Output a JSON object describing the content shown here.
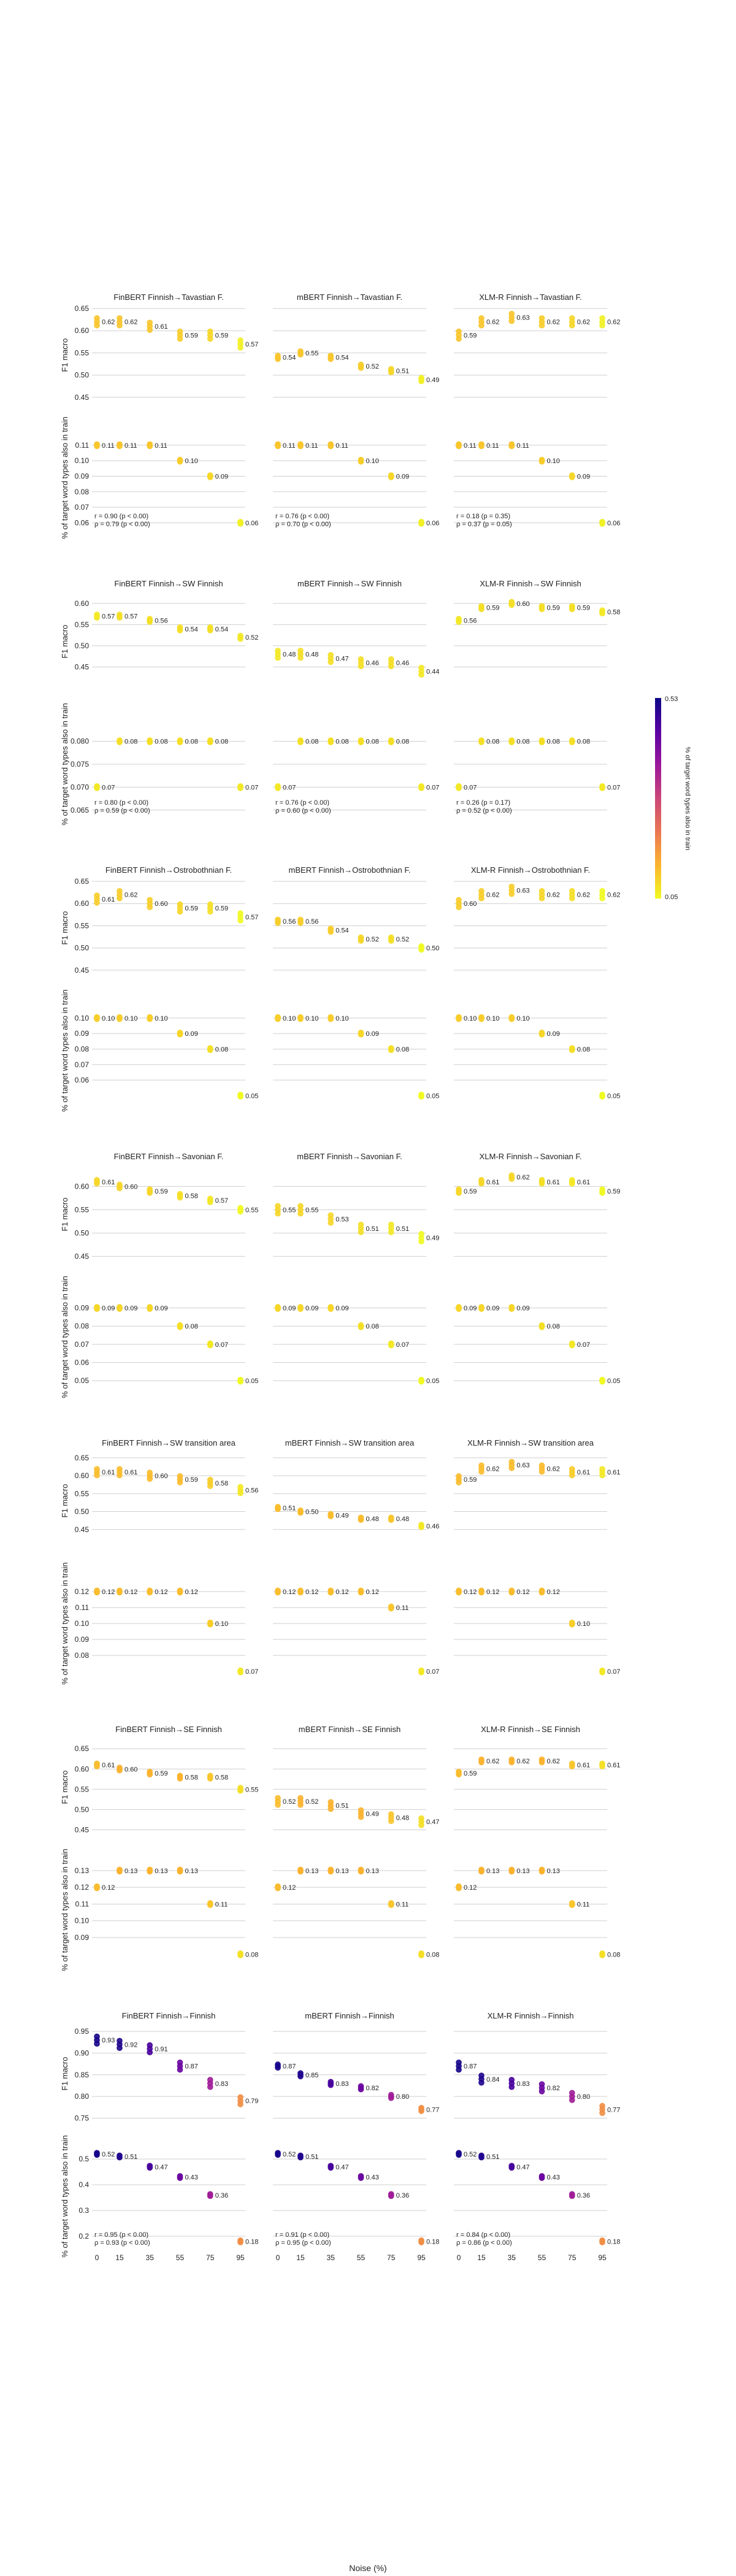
{
  "figure": {
    "xlabel": "Noise (%)",
    "ylabel_f1": "F1 macro",
    "ylabel_overlap": "% of target word types also in train",
    "colorbar": {
      "label": "% of target word types also in train",
      "min_label": "0.05",
      "max_label": "0.53"
    },
    "x_ticks": [
      0,
      15,
      35,
      55,
      75,
      95
    ],
    "colormap": [
      "#0d0887",
      "#5b02a3",
      "#9a179b",
      "#cb4678",
      "#eb7852",
      "#fbb32f",
      "#f0f921"
    ]
  },
  "chart_data": [
    {
      "type": "scatter",
      "title": "FinBERT Finnish→Tavastian F.",
      "x": [
        0,
        15,
        35,
        55,
        75,
        95
      ],
      "f1": [
        0.62,
        0.62,
        0.61,
        0.59,
        0.59,
        0.57
      ],
      "overlap": [
        0.11,
        0.11,
        0.11,
        0.1,
        0.09,
        0.06
      ],
      "stats": [
        "r = 0.90 (p < 0.00)",
        "ρ = 0.79 (p < 0.00)"
      ],
      "ylim_f1": [
        0.44,
        0.65
      ],
      "yticks_f1": [
        0.45,
        0.5,
        0.55,
        0.6,
        0.65
      ],
      "ylim_ov": [
        0.055,
        0.123
      ],
      "yticks_ov": [
        0.06,
        0.07,
        0.08,
        0.09,
        0.1,
        0.11
      ]
    },
    {
      "type": "scatter",
      "title": "mBERT Finnish→Tavastian F.",
      "x": [
        0,
        15,
        35,
        55,
        75,
        95
      ],
      "f1": [
        0.54,
        0.55,
        0.54,
        0.52,
        0.51,
        0.49
      ],
      "overlap": [
        0.11,
        0.11,
        0.11,
        0.1,
        0.09,
        0.06
      ],
      "stats": [
        "r = 0.76 (p < 0.00)",
        "ρ = 0.70 (p < 0.00)"
      ],
      "ylim_f1": [
        0.44,
        0.65
      ],
      "yticks_f1": [
        0.45,
        0.5,
        0.55,
        0.6,
        0.65
      ],
      "ylim_ov": [
        0.055,
        0.123
      ],
      "yticks_ov": [
        0.06,
        0.07,
        0.08,
        0.09,
        0.1,
        0.11
      ]
    },
    {
      "type": "scatter",
      "title": "XLM-R Finnish→Tavastian F.",
      "x": [
        0,
        15,
        35,
        55,
        75,
        95
      ],
      "f1": [
        0.59,
        0.62,
        0.63,
        0.62,
        0.62,
        0.62
      ],
      "overlap": [
        0.11,
        0.11,
        0.11,
        0.1,
        0.09,
        0.06
      ],
      "stats": [
        "r = 0.18 (p = 0.35)",
        "ρ = 0.37 (p = 0.05)"
      ],
      "ylim_f1": [
        0.44,
        0.65
      ],
      "yticks_f1": [
        0.45,
        0.5,
        0.55,
        0.6,
        0.65
      ],
      "ylim_ov": [
        0.055,
        0.123
      ],
      "yticks_ov": [
        0.06,
        0.07,
        0.08,
        0.09,
        0.1,
        0.11
      ]
    },
    {
      "type": "scatter",
      "title": "FinBERT Finnish→SW Finnish",
      "x": [
        0,
        15,
        35,
        55,
        75,
        95
      ],
      "f1": [
        0.57,
        0.57,
        0.56,
        0.54,
        0.54,
        0.52
      ],
      "overlap": [
        0.07,
        0.08,
        0.08,
        0.08,
        0.08,
        0.07
      ],
      "stats": [
        "r = 0.80 (p < 0.00)",
        "ρ = 0.59 (p < 0.00)"
      ],
      "ylim_f1": [
        0.4,
        0.62
      ],
      "yticks_f1": [
        0.45,
        0.5,
        0.55,
        0.6
      ],
      "ylim_ov": [
        0.0635,
        0.0865
      ],
      "yticks_ov": [
        0.065,
        0.07,
        0.075,
        0.08
      ]
    },
    {
      "type": "scatter",
      "title": "mBERT Finnish→SW Finnish",
      "x": [
        0,
        15,
        35,
        55,
        75,
        95
      ],
      "f1": [
        0.48,
        0.48,
        0.47,
        0.46,
        0.46,
        0.44
      ],
      "overlap": [
        0.07,
        0.08,
        0.08,
        0.08,
        0.08,
        0.07
      ],
      "stats": [
        "r = 0.76 (p < 0.00)",
        "ρ = 0.60 (p < 0.00)"
      ],
      "ylim_f1": [
        0.4,
        0.62
      ],
      "yticks_f1": [
        0.45,
        0.5,
        0.55,
        0.6
      ],
      "ylim_ov": [
        0.0635,
        0.0865
      ],
      "yticks_ov": [
        0.065,
        0.07,
        0.075,
        0.08
      ]
    },
    {
      "type": "scatter",
      "title": "XLM-R Finnish→SW Finnish",
      "x": [
        0,
        15,
        35,
        55,
        75,
        95
      ],
      "f1": [
        0.56,
        0.59,
        0.6,
        0.59,
        0.59,
        0.58
      ],
      "overlap": [
        0.07,
        0.08,
        0.08,
        0.08,
        0.08,
        0.07
      ],
      "stats": [
        "r = 0.26 (p = 0.17)",
        "ρ = 0.52 (p < 0.00)"
      ],
      "ylim_f1": [
        0.4,
        0.62
      ],
      "yticks_f1": [
        0.45,
        0.5,
        0.55,
        0.6
      ],
      "ylim_ov": [
        0.0635,
        0.0865
      ],
      "yticks_ov": [
        0.065,
        0.07,
        0.075,
        0.08
      ]
    },
    {
      "type": "scatter",
      "title": "FinBERT Finnish→Ostrobothnian F.",
      "x": [
        0,
        15,
        35,
        55,
        75,
        95
      ],
      "f1": [
        0.61,
        0.62,
        0.6,
        0.59,
        0.59,
        0.57
      ],
      "overlap": [
        0.1,
        0.1,
        0.1,
        0.09,
        0.08,
        0.05
      ],
      "stats": [],
      "ylim_f1": [
        0.44,
        0.65
      ],
      "yticks_f1": [
        0.45,
        0.5,
        0.55,
        0.6,
        0.65
      ],
      "ylim_ov": [
        0.045,
        0.113
      ],
      "yticks_ov": [
        0.06,
        0.07,
        0.08,
        0.09,
        0.1
      ]
    },
    {
      "type": "scatter",
      "title": "mBERT Finnish→Ostrobothnian F.",
      "x": [
        0,
        15,
        35,
        55,
        75,
        95
      ],
      "f1": [
        0.56,
        0.56,
        0.54,
        0.52,
        0.52,
        0.5
      ],
      "overlap": [
        0.1,
        0.1,
        0.1,
        0.09,
        0.08,
        0.05
      ],
      "stats": [],
      "ylim_f1": [
        0.44,
        0.65
      ],
      "yticks_f1": [
        0.45,
        0.5,
        0.55,
        0.6,
        0.65
      ],
      "ylim_ov": [
        0.045,
        0.113
      ],
      "yticks_ov": [
        0.06,
        0.07,
        0.08,
        0.09,
        0.1
      ]
    },
    {
      "type": "scatter",
      "title": "XLM-R Finnish→Ostrobothnian F.",
      "x": [
        0,
        15,
        35,
        55,
        75,
        95
      ],
      "f1": [
        0.6,
        0.62,
        0.63,
        0.62,
        0.62,
        0.62
      ],
      "overlap": [
        0.1,
        0.1,
        0.1,
        0.09,
        0.08,
        0.05
      ],
      "stats": [],
      "ylim_f1": [
        0.44,
        0.65
      ],
      "yticks_f1": [
        0.45,
        0.5,
        0.55,
        0.6,
        0.65
      ],
      "ylim_ov": [
        0.045,
        0.113
      ],
      "yticks_ov": [
        0.06,
        0.07,
        0.08,
        0.09,
        0.1
      ]
    },
    {
      "type": "scatter",
      "title": "FinBERT Finnish→Savonian F.",
      "x": [
        0,
        15,
        35,
        55,
        75,
        95
      ],
      "f1": [
        0.61,
        0.6,
        0.59,
        0.58,
        0.57,
        0.55
      ],
      "overlap": [
        0.09,
        0.09,
        0.09,
        0.08,
        0.07,
        0.05
      ],
      "stats": [],
      "ylim_f1": [
        0.44,
        0.64
      ],
      "yticks_f1": [
        0.45,
        0.5,
        0.55,
        0.6
      ],
      "ylim_ov": [
        0.045,
        0.103
      ],
      "yticks_ov": [
        0.05,
        0.06,
        0.07,
        0.08,
        0.09
      ]
    },
    {
      "type": "scatter",
      "title": "mBERT Finnish→Savonian F.",
      "x": [
        0,
        15,
        35,
        55,
        75,
        95
      ],
      "f1": [
        0.55,
        0.55,
        0.53,
        0.51,
        0.51,
        0.49
      ],
      "overlap": [
        0.09,
        0.09,
        0.09,
        0.08,
        0.07,
        0.05
      ],
      "stats": [],
      "ylim_f1": [
        0.44,
        0.64
      ],
      "yticks_f1": [
        0.45,
        0.5,
        0.55,
        0.6
      ],
      "ylim_ov": [
        0.045,
        0.103
      ],
      "yticks_ov": [
        0.05,
        0.06,
        0.07,
        0.08,
        0.09
      ]
    },
    {
      "type": "scatter",
      "title": "XLM-R Finnish→Savonian F.",
      "x": [
        0,
        15,
        35,
        55,
        75,
        95
      ],
      "f1": [
        0.59,
        0.61,
        0.62,
        0.61,
        0.61,
        0.59
      ],
      "overlap": [
        0.09,
        0.09,
        0.09,
        0.08,
        0.07,
        0.05
      ],
      "stats": [],
      "ylim_f1": [
        0.44,
        0.64
      ],
      "yticks_f1": [
        0.45,
        0.5,
        0.55,
        0.6
      ],
      "ylim_ov": [
        0.045,
        0.103
      ],
      "yticks_ov": [
        0.05,
        0.06,
        0.07,
        0.08,
        0.09
      ]
    },
    {
      "type": "scatter",
      "title": "FinBERT Finnish→SW transition area",
      "x": [
        0,
        15,
        35,
        55,
        75,
        95
      ],
      "f1": [
        0.61,
        0.61,
        0.6,
        0.59,
        0.58,
        0.56
      ],
      "overlap": [
        0.12,
        0.12,
        0.12,
        0.12,
        0.1,
        0.07
      ],
      "stats": [],
      "ylim_f1": [
        0.4,
        0.66
      ],
      "yticks_f1": [
        0.45,
        0.5,
        0.55,
        0.6,
        0.65
      ],
      "ylim_ov": [
        0.067,
        0.133
      ],
      "yticks_ov": [
        0.08,
        0.09,
        0.1,
        0.11,
        0.12
      ]
    },
    {
      "type": "scatter",
      "title": "mBERT Finnish→SW transition area",
      "x": [
        0,
        15,
        35,
        55,
        75,
        95
      ],
      "f1": [
        0.51,
        0.5,
        0.49,
        0.48,
        0.48,
        0.46
      ],
      "overlap": [
        0.12,
        0.12,
        0.12,
        0.12,
        0.11,
        0.07
      ],
      "stats": [],
      "ylim_f1": [
        0.4,
        0.66
      ],
      "yticks_f1": [
        0.45,
        0.5,
        0.55,
        0.6,
        0.65
      ],
      "ylim_ov": [
        0.067,
        0.133
      ],
      "yticks_ov": [
        0.08,
        0.09,
        0.1,
        0.11,
        0.12
      ]
    },
    {
      "type": "scatter",
      "title": "XLM-R Finnish→SW transition area",
      "x": [
        0,
        15,
        35,
        55,
        75,
        95
      ],
      "f1": [
        0.59,
        0.62,
        0.63,
        0.62,
        0.61,
        0.61
      ],
      "overlap": [
        0.12,
        0.12,
        0.12,
        0.12,
        0.1,
        0.07
      ],
      "stats": [],
      "ylim_f1": [
        0.4,
        0.66
      ],
      "yticks_f1": [
        0.45,
        0.5,
        0.55,
        0.6,
        0.65
      ],
      "ylim_ov": [
        0.067,
        0.133
      ],
      "yticks_ov": [
        0.08,
        0.09,
        0.1,
        0.11,
        0.12
      ]
    },
    {
      "type": "scatter",
      "title": "FinBERT Finnish→SE Finnish",
      "x": [
        0,
        15,
        35,
        55,
        75,
        95
      ],
      "f1": [
        0.61,
        0.6,
        0.59,
        0.58,
        0.58,
        0.55
      ],
      "overlap": [
        0.12,
        0.13,
        0.13,
        0.13,
        0.11,
        0.08
      ],
      "stats": [],
      "ylim_f1": [
        0.44,
        0.67
      ],
      "yticks_f1": [
        0.45,
        0.5,
        0.55,
        0.6,
        0.65
      ],
      "ylim_ov": [
        0.075,
        0.138
      ],
      "yticks_ov": [
        0.09,
        0.1,
        0.11,
        0.12,
        0.13
      ]
    },
    {
      "type": "scatter",
      "title": "mBERT Finnish→SE Finnish",
      "x": [
        0,
        15,
        35,
        55,
        75,
        95
      ],
      "f1": [
        0.52,
        0.52,
        0.51,
        0.49,
        0.48,
        0.47
      ],
      "overlap": [
        0.12,
        0.13,
        0.13,
        0.13,
        0.11,
        0.08
      ],
      "stats": [],
      "ylim_f1": [
        0.44,
        0.67
      ],
      "yticks_f1": [
        0.45,
        0.5,
        0.55,
        0.6,
        0.65
      ],
      "ylim_ov": [
        0.075,
        0.138
      ],
      "yticks_ov": [
        0.09,
        0.1,
        0.11,
        0.12,
        0.13
      ]
    },
    {
      "type": "scatter",
      "title": "XLM-R Finnish→SE Finnish",
      "x": [
        0,
        15,
        35,
        55,
        75,
        95
      ],
      "f1": [
        0.59,
        0.62,
        0.62,
        0.62,
        0.61,
        0.61
      ],
      "overlap": [
        0.12,
        0.13,
        0.13,
        0.13,
        0.11,
        0.08
      ],
      "stats": [],
      "ylim_f1": [
        0.44,
        0.67
      ],
      "yticks_f1": [
        0.45,
        0.5,
        0.55,
        0.6,
        0.65
      ],
      "ylim_ov": [
        0.075,
        0.138
      ],
      "yticks_ov": [
        0.09,
        0.1,
        0.11,
        0.12,
        0.13
      ]
    },
    {
      "type": "scatter",
      "title": "FinBERT Finnish→Finnish",
      "x": [
        0,
        15,
        35,
        55,
        75,
        95
      ],
      "f1": [
        0.93,
        0.92,
        0.91,
        0.87,
        0.83,
        0.79
      ],
      "overlap": [
        0.52,
        0.51,
        0.47,
        0.43,
        0.36,
        0.18
      ],
      "stats": [
        "r = 0.95 (p < 0.00)",
        "ρ = 0.93 (p < 0.00)"
      ],
      "ylim_f1": [
        0.745,
        0.96
      ],
      "yticks_f1": [
        0.75,
        0.8,
        0.85,
        0.9,
        0.95
      ],
      "ylim_ov": [
        0.15,
        0.56
      ],
      "yticks_ov": [
        0.2,
        0.3,
        0.4,
        0.5
      ]
    },
    {
      "type": "scatter",
      "title": "mBERT Finnish→Finnish",
      "x": [
        0,
        15,
        35,
        55,
        75,
        95
      ],
      "f1": [
        0.87,
        0.85,
        0.83,
        0.82,
        0.8,
        0.77
      ],
      "overlap": [
        0.52,
        0.51,
        0.47,
        0.43,
        0.36,
        0.18
      ],
      "stats": [
        "r = 0.91 (p < 0.00)",
        "ρ = 0.95 (p < 0.00)"
      ],
      "ylim_f1": [
        0.745,
        0.96
      ],
      "yticks_f1": [
        0.75,
        0.8,
        0.85,
        0.9,
        0.95
      ],
      "ylim_ov": [
        0.15,
        0.56
      ],
      "yticks_ov": [
        0.2,
        0.3,
        0.4,
        0.5
      ]
    },
    {
      "type": "scatter",
      "title": "XLM-R Finnish→Finnish",
      "x": [
        0,
        15,
        35,
        55,
        75,
        95
      ],
      "f1": [
        0.87,
        0.84,
        0.83,
        0.82,
        0.8,
        0.77
      ],
      "overlap": [
        0.52,
        0.51,
        0.47,
        0.43,
        0.36,
        0.18
      ],
      "stats": [
        "r = 0.84 (p < 0.00)",
        "ρ = 0.86 (p < 0.00)"
      ],
      "ylim_f1": [
        0.745,
        0.96
      ],
      "yticks_f1": [
        0.75,
        0.8,
        0.85,
        0.9,
        0.95
      ],
      "ylim_ov": [
        0.15,
        0.56
      ],
      "yticks_ov": [
        0.2,
        0.3,
        0.4,
        0.5
      ]
    }
  ]
}
